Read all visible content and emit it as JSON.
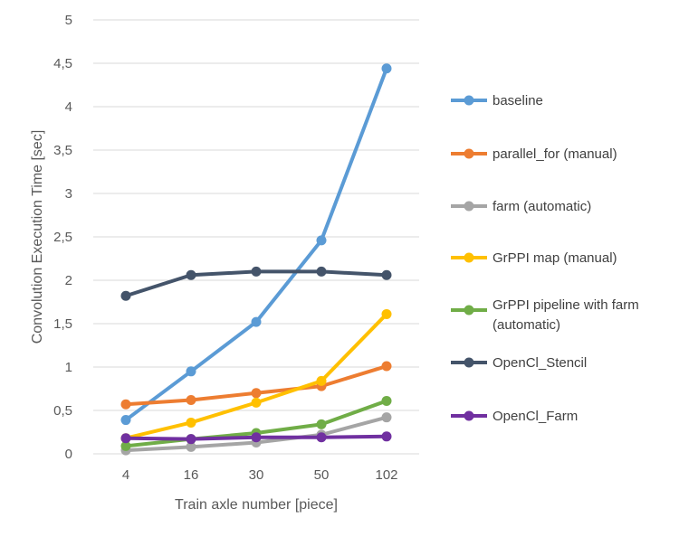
{
  "chart_data": {
    "type": "line",
    "categories": [
      "4",
      "16",
      "30",
      "50",
      "102"
    ],
    "xlabel": "Train axle number [piece]",
    "ylabel": "Convolution Execution Time [sec]",
    "ylim": [
      0,
      5
    ],
    "yticks": [
      "0",
      "0,5",
      "1",
      "1,5",
      "2",
      "2,5",
      "3",
      "3,5",
      "4",
      "4,5",
      "5"
    ],
    "grid": true,
    "legend": "right",
    "series": [
      {
        "name": "baseline",
        "color": "#5b9bd5",
        "values": [
          0.39,
          0.95,
          1.52,
          2.46,
          4.44
        ]
      },
      {
        "name": "parallel_for (manual)",
        "color": "#ed7d31",
        "values": [
          0.57,
          0.62,
          0.7,
          0.78,
          1.01
        ]
      },
      {
        "name": "farm (automatic)",
        "color": "#a5a5a5",
        "values": [
          0.04,
          0.08,
          0.13,
          0.22,
          0.42
        ]
      },
      {
        "name": "GrPPI map (manual)",
        "color": "#ffc000",
        "values": [
          0.18,
          0.36,
          0.59,
          0.84,
          1.61
        ]
      },
      {
        "name": "GrPPI pipeline with farm (automatic)",
        "color": "#70ad47",
        "values": [
          0.09,
          0.17,
          0.24,
          0.34,
          0.61
        ]
      },
      {
        "name": "OpenCl_Stencil",
        "color": "#44546a",
        "values": [
          1.82,
          2.06,
          2.1,
          2.1,
          2.06
        ]
      },
      {
        "name": "OpenCl_Farm",
        "color": "#7030a0",
        "values": [
          0.18,
          0.17,
          0.19,
          0.19,
          0.2
        ]
      }
    ]
  }
}
